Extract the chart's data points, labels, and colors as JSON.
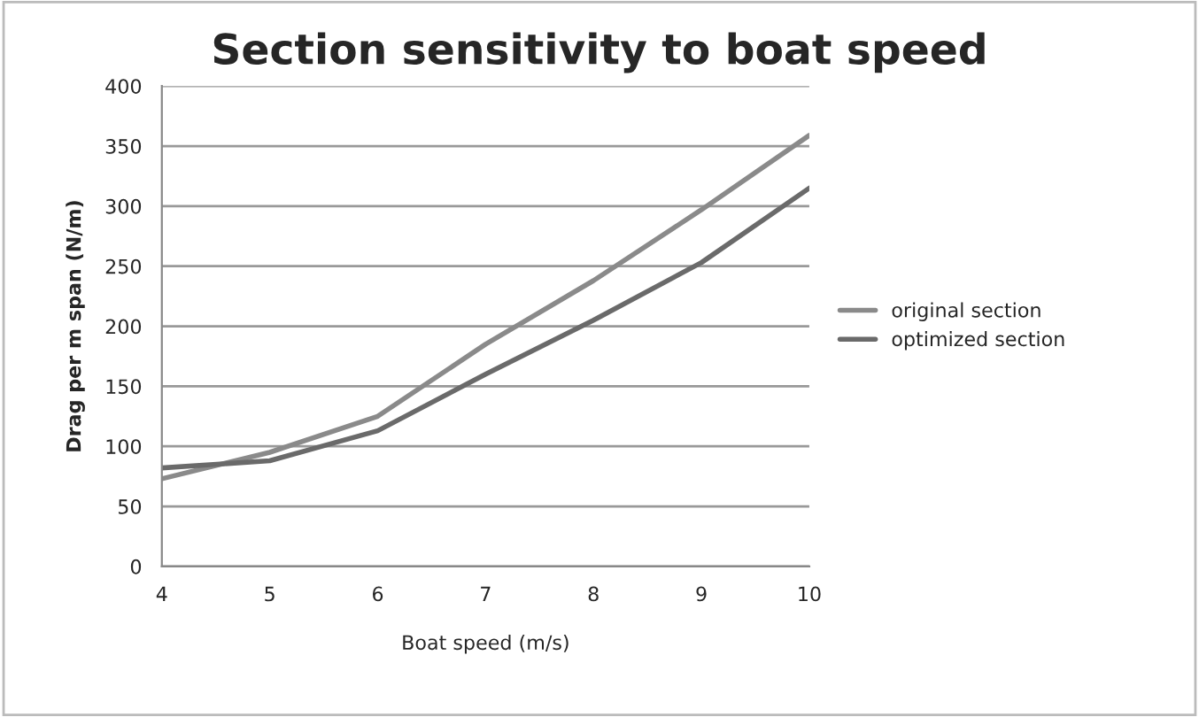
{
  "chart_data": {
    "type": "line",
    "title": "Section sensitivity to boat speed",
    "xlabel": "Boat speed (m/s)",
    "ylabel": "Drag per m span (N/m)",
    "x": [
      4,
      5,
      6,
      7,
      8,
      9,
      10
    ],
    "series": [
      {
        "name": "original section",
        "color": "#8a8a8a",
        "values": [
          73,
          95,
          125,
          185,
          238,
          297,
          359
        ]
      },
      {
        "name": "optimized section",
        "color": "#6a6a6a",
        "values": [
          82,
          88,
          113,
          160,
          205,
          253,
          315
        ]
      }
    ],
    "xlim": [
      4,
      10
    ],
    "xticks": [
      4,
      5,
      6,
      7,
      8,
      9,
      10
    ],
    "ylim": [
      0,
      400
    ],
    "yticks": [
      0,
      50,
      100,
      150,
      200,
      250,
      300,
      350,
      400
    ],
    "grid": "y",
    "legend": "right",
    "line_style": "solid",
    "marker": "none"
  }
}
